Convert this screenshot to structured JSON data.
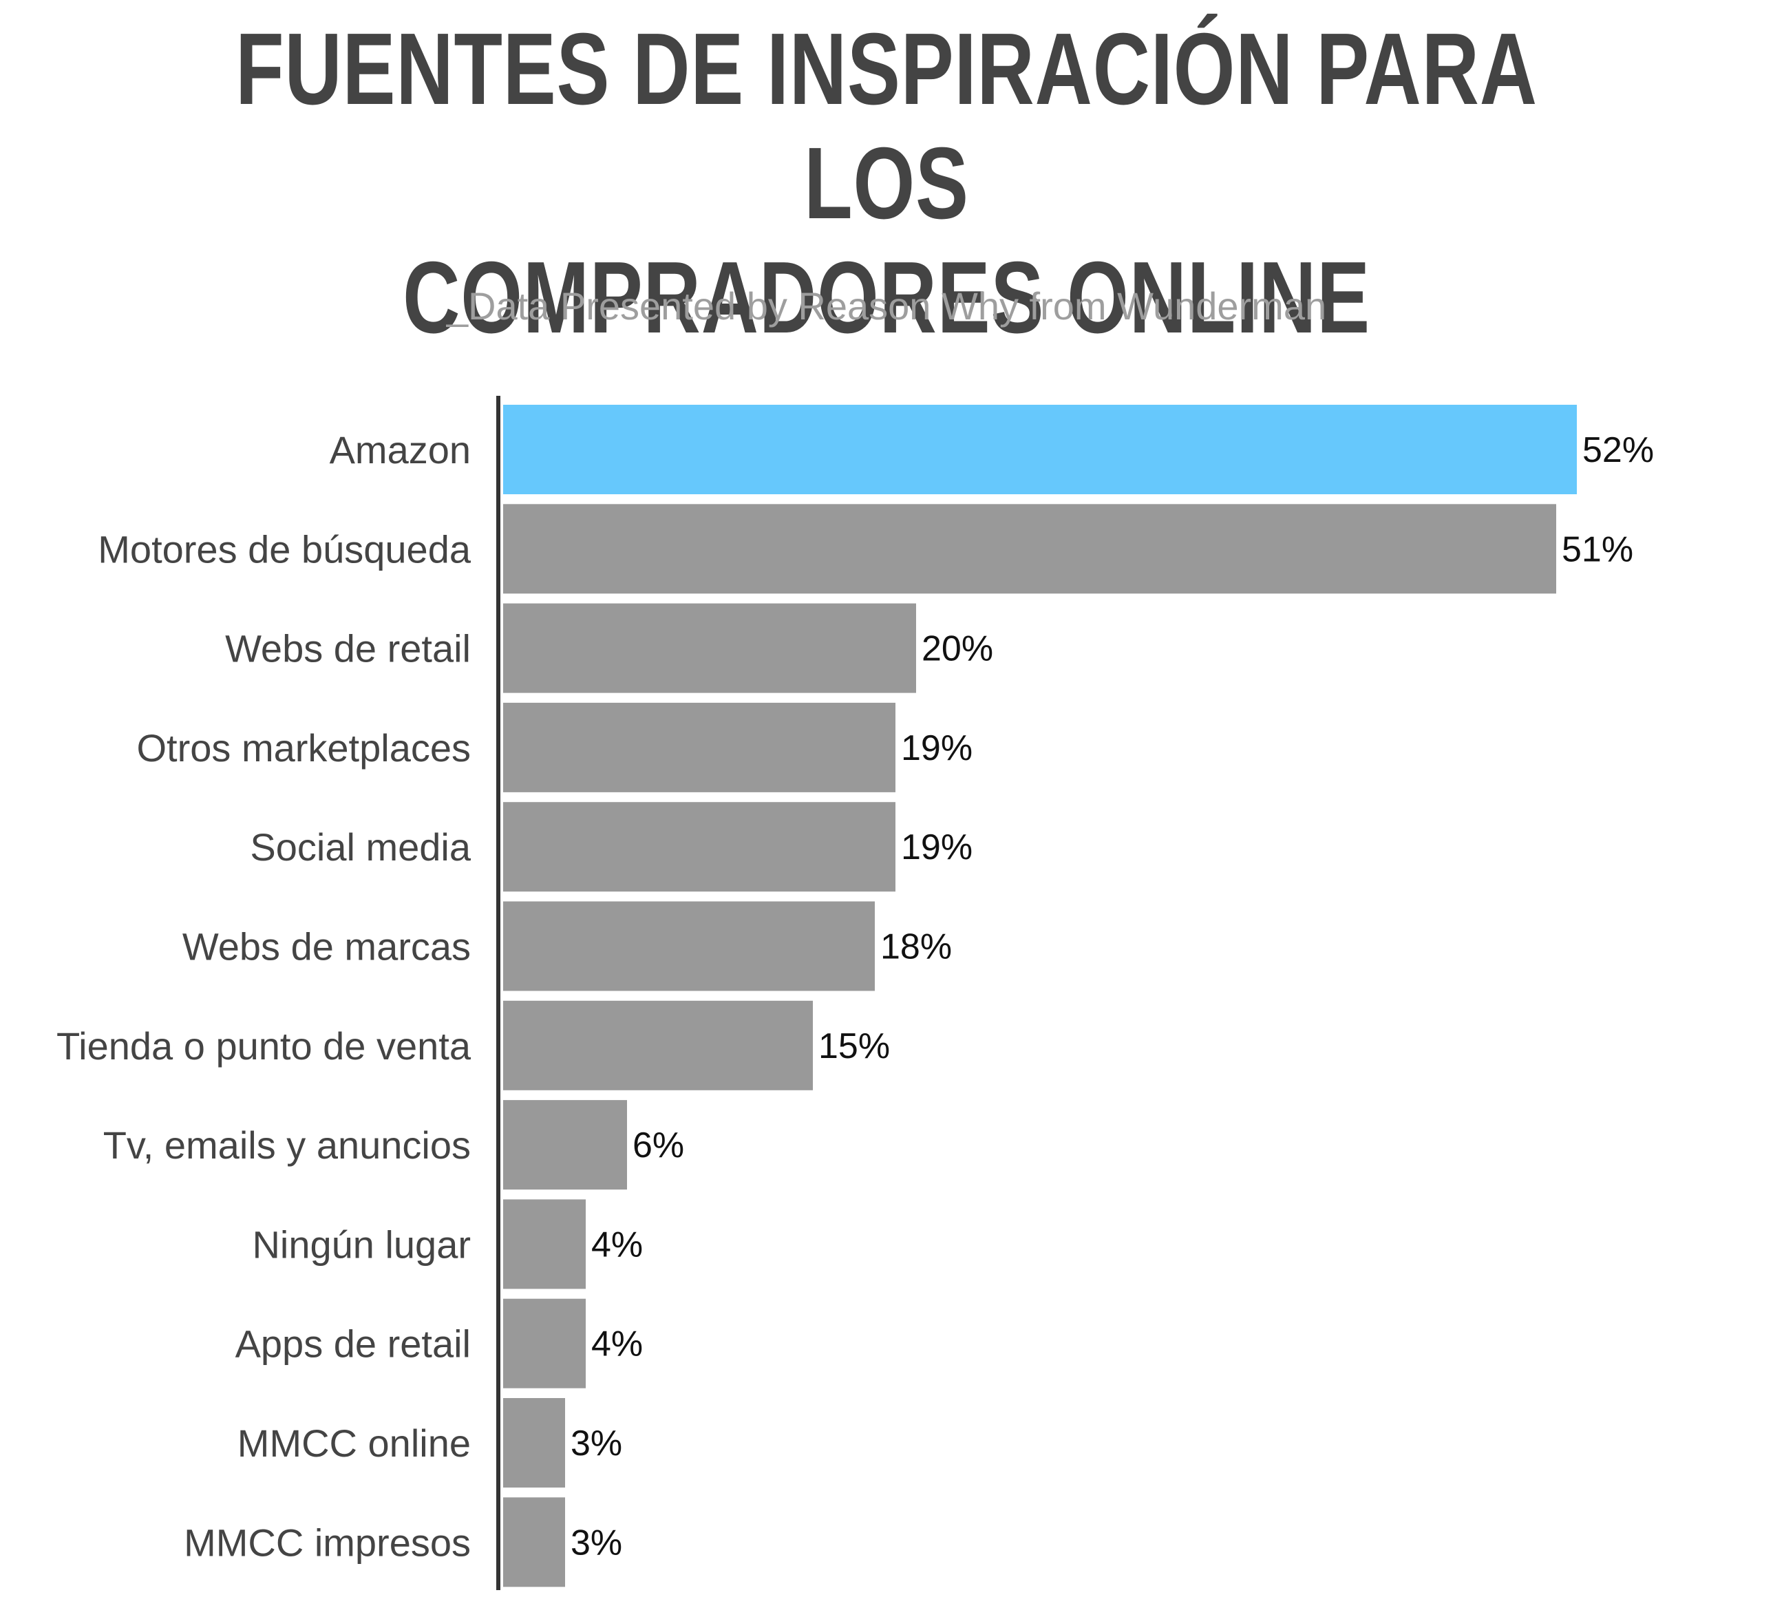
{
  "title_line1": "FUENTES DE INSPIRACIÓN PARA LOS",
  "title_line2": "COMPRADORES ONLINE",
  "subtitle": "_Data Presented by Reason Why from Wunderman",
  "colors": {
    "highlight": "#66c8fc",
    "bar": "#999999",
    "axis": "#333333"
  },
  "chart_data": {
    "type": "bar",
    "orientation": "horizontal",
    "title": "FUENTES DE INSPIRACIÓN PARA LOS COMPRADORES ONLINE",
    "subtitle": "_Data Presented by Reason Why from Wunderman",
    "categories": [
      "Amazon",
      "Motores de búsqueda",
      "Webs de retail",
      "Otros marketplaces",
      "Social media",
      "Webs de marcas",
      "Tienda o punto de venta",
      "Tv, emails y anuncios",
      "Ningún lugar",
      "Apps de retail",
      "MMCC online",
      "MMCC impresos"
    ],
    "values": [
      52,
      51,
      20,
      19,
      19,
      18,
      15,
      6,
      4,
      4,
      3,
      3
    ],
    "value_labels": [
      "52%",
      "51%",
      "20%",
      "19%",
      "19%",
      "18%",
      "15%",
      "6%",
      "4%",
      "4%",
      "3%",
      "3%"
    ],
    "highlighted_category": "Amazon",
    "xlim": [
      0,
      52
    ],
    "grid": false,
    "legend": "none"
  }
}
